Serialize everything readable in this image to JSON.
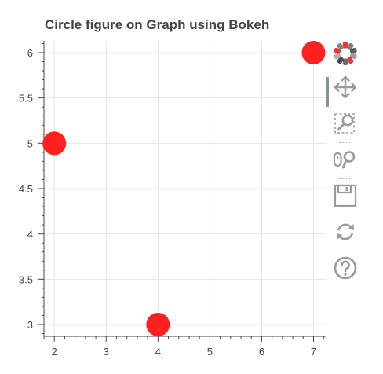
{
  "chart_data": {
    "type": "scatter",
    "title": "Circle figure on Graph using Bokeh",
    "x": [
      2,
      4,
      7
    ],
    "y": [
      5,
      3,
      6
    ],
    "marker": "circle",
    "marker_color": "#ff2020",
    "xlim": [
      1.8,
      7.25
    ],
    "ylim": [
      2.87,
      6.13
    ],
    "x_ticks": [
      "2",
      "3",
      "4",
      "5",
      "6",
      "7"
    ],
    "y_ticks": [
      "3",
      "3.5",
      "4",
      "4.5",
      "5",
      "5.5",
      "6"
    ],
    "grid": true,
    "xlabel": "",
    "ylabel": ""
  },
  "toolbar": {
    "tools": [
      {
        "name": "bokeh-logo",
        "icon": "bokeh-logo-icon",
        "active": false
      },
      {
        "name": "pan",
        "icon": "pan-icon",
        "active": true
      },
      {
        "name": "box-zoom",
        "icon": "box-zoom-icon",
        "active": false
      },
      {
        "name": "wheel-zoom",
        "icon": "wheel-zoom-icon",
        "active": false
      },
      {
        "name": "save",
        "icon": "save-icon",
        "active": false
      },
      {
        "name": "reset",
        "icon": "reset-icon",
        "active": false
      },
      {
        "name": "help",
        "icon": "help-icon",
        "active": false
      }
    ]
  },
  "colors": {
    "axis": "#444444",
    "grid": "#e5e5e5",
    "icon": "#9a9a9a",
    "point": "#ff2020"
  }
}
